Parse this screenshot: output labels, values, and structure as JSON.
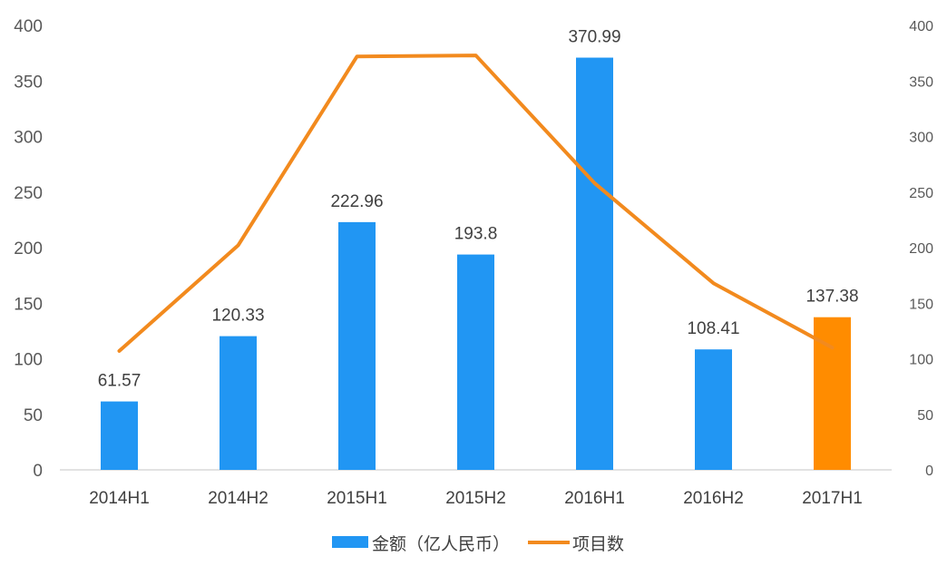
{
  "chart_data": {
    "type": "bar",
    "categories": [
      "2014H1",
      "2014H2",
      "2015H1",
      "2015H2",
      "2016H1",
      "2016H2",
      "2017H1"
    ],
    "series": [
      {
        "name": "金额（亿人民币）",
        "type": "bar",
        "axis": "left",
        "values": [
          61.57,
          120.33,
          222.96,
          193.8,
          370.99,
          108.41,
          137.38
        ],
        "data_labels": [
          "61.57",
          "120.33",
          "222.96",
          "193.8",
          "370.99",
          "108.41",
          "137.38"
        ],
        "color": "#2196F3",
        "highlight_index": 6,
        "highlight_color": "#FF8C00"
      },
      {
        "name": "项目数",
        "type": "line",
        "axis": "right",
        "values": [
          107,
          202,
          372,
          373,
          258,
          168,
          110
        ],
        "color": "#F28A1E"
      }
    ],
    "ylim_left": [
      0,
      400
    ],
    "ylim_right": [
      0,
      400
    ],
    "yticks_left": [
      "0",
      "50",
      "100",
      "150",
      "200",
      "250",
      "300",
      "350",
      "400"
    ],
    "yticks_right": [
      "0",
      "50",
      "100",
      "150",
      "200",
      "250",
      "300",
      "350",
      "400"
    ],
    "grid": false,
    "legend_position": "bottom"
  },
  "legend": {
    "bar_label": "金额（亿人民币）",
    "line_label": "项目数"
  }
}
